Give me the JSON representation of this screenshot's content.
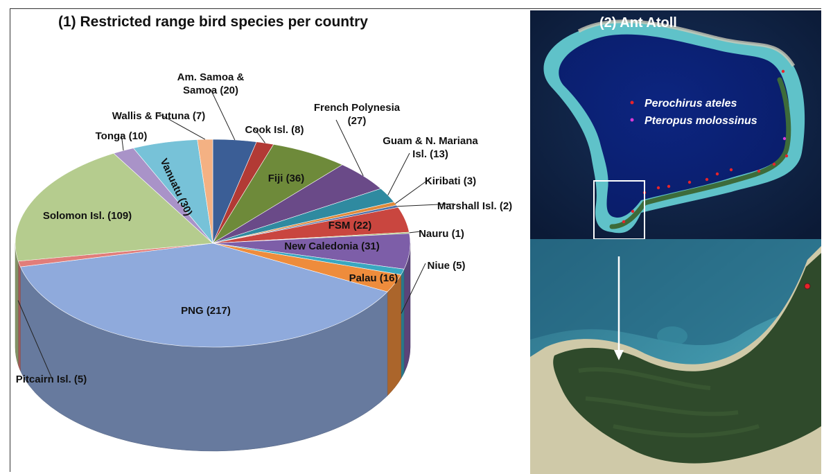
{
  "panel1": {
    "title": "(1)  Restricted range bird species per country"
  },
  "panel2": {
    "title": "(2)  Ant Atoll",
    "legend": [
      {
        "label": "Perochirus ateles",
        "color": "#e8232a"
      },
      {
        "label": "Pteropus molossinus",
        "color": "#d83ad8"
      }
    ]
  },
  "chart_data": {
    "type": "pie",
    "title": "Restricted range bird species per country",
    "slices": [
      {
        "label": "Am. Samoa & Samoa",
        "value": 20,
        "color": "#3b5e96"
      },
      {
        "label": "Cook Isl.",
        "value": 8,
        "color": "#b23a35"
      },
      {
        "label": "Fiji",
        "value": 36,
        "color": "#6e8a3a"
      },
      {
        "label": "French Polynesia",
        "value": 27,
        "color": "#6a4a88"
      },
      {
        "label": "Guam & N. Mariana Isl.",
        "value": 13,
        "color": "#2f8aa0"
      },
      {
        "label": "Kiribati",
        "value": 3,
        "color": "#e08a3a"
      },
      {
        "label": "Marshall Isl.",
        "value": 2,
        "color": "#4a6fa8"
      },
      {
        "label": "FSM",
        "value": 22,
        "color": "#c9463f"
      },
      {
        "label": "Nauru",
        "value": 1,
        "color": "#98b85a"
      },
      {
        "label": "New Caledonia",
        "value": 31,
        "color": "#7d5ea8"
      },
      {
        "label": "Niue",
        "value": 5,
        "color": "#3aa7c0"
      },
      {
        "label": "Palau",
        "value": 16,
        "color": "#ee8c3c"
      },
      {
        "label": "PNG",
        "value": 217,
        "color": "#8faadc"
      },
      {
        "label": "Pitcairn Isl.",
        "value": 5,
        "color": "#e17d7a"
      },
      {
        "label": "Solomon Isl.",
        "value": 109,
        "color": "#b5cc8e"
      },
      {
        "label": "Tonga",
        "value": 10,
        "color": "#a993c8"
      },
      {
        "label": "Vanuatu",
        "value": 30,
        "color": "#77c2d8"
      },
      {
        "label": "Wallis & Futuna",
        "value": 7,
        "color": "#f4b183"
      }
    ]
  }
}
